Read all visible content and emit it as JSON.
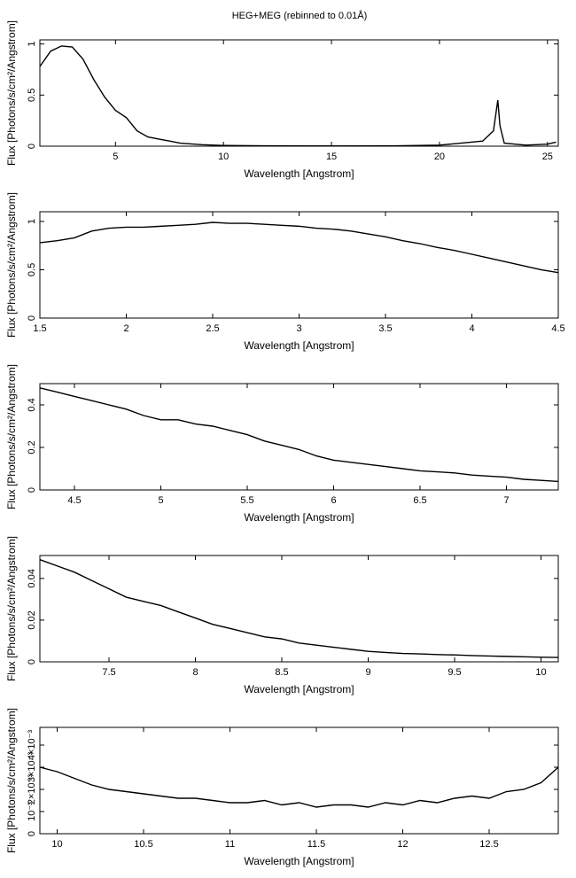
{
  "chart_data": [
    {
      "type": "line",
      "title": "HEG+MEG (rebinned to 0.01Å)",
      "x_label": "Wavelength [Angstrom]",
      "y_label": "Flux [Photons/s/cm²/Angstrom]",
      "color": "#000000",
      "x": [
        1.5,
        2,
        2.5,
        3,
        3.5,
        4,
        4.5,
        5,
        5.5,
        6,
        6.5,
        7,
        7.5,
        8,
        9,
        10,
        12,
        15,
        18,
        20,
        21,
        22,
        22.5,
        22.7,
        22.8,
        23,
        24,
        25,
        25.4
      ],
      "values": [
        0.78,
        0.93,
        0.98,
        0.97,
        0.85,
        0.65,
        0.48,
        0.35,
        0.28,
        0.15,
        0.09,
        0.07,
        0.05,
        0.03,
        0.015,
        0.007,
        0.004,
        0.003,
        0.004,
        0.01,
        0.03,
        0.05,
        0.15,
        0.45,
        0.2,
        0.03,
        0.01,
        0.02,
        0.04
      ],
      "xlim": [
        1.5,
        25.5
      ],
      "xticks": [
        5,
        10,
        15,
        20,
        25
      ],
      "ylim": [
        0,
        1.04
      ],
      "yticks": [
        0,
        0.5,
        1
      ]
    },
    {
      "type": "line",
      "x_label": "Wavelength [Angstrom]",
      "y_label": "Flux [Photons/s/cm²/Angstrom]",
      "color": "#000000",
      "x": [
        1.5,
        1.6,
        1.7,
        1.8,
        1.9,
        2.0,
        2.1,
        2.2,
        2.3,
        2.4,
        2.5,
        2.6,
        2.7,
        2.8,
        2.9,
        3.0,
        3.1,
        3.2,
        3.3,
        3.4,
        3.5,
        3.6,
        3.7,
        3.8,
        3.9,
        4.0,
        4.1,
        4.2,
        4.3,
        4.4,
        4.5
      ],
      "values": [
        0.78,
        0.8,
        0.83,
        0.9,
        0.93,
        0.94,
        0.94,
        0.95,
        0.96,
        0.97,
        0.99,
        0.98,
        0.98,
        0.97,
        0.96,
        0.95,
        0.93,
        0.92,
        0.9,
        0.87,
        0.84,
        0.8,
        0.77,
        0.73,
        0.7,
        0.66,
        0.62,
        0.58,
        0.54,
        0.5,
        0.47
      ],
      "xlim": [
        1.5,
        4.5
      ],
      "xticks": [
        1.5,
        2,
        2.5,
        3,
        3.5,
        4,
        4.5
      ],
      "ylim": [
        0,
        1.1
      ],
      "yticks": [
        0,
        0.5,
        1
      ]
    },
    {
      "type": "line",
      "x_label": "Wavelength [Angstrom]",
      "y_label": "Flux [Photons/s/cm²/Angstrom]",
      "color": "#000000",
      "x": [
        4.3,
        4.4,
        4.5,
        4.6,
        4.7,
        4.8,
        4.9,
        5.0,
        5.1,
        5.2,
        5.3,
        5.4,
        5.5,
        5.6,
        5.7,
        5.8,
        5.9,
        6.0,
        6.1,
        6.2,
        6.3,
        6.4,
        6.5,
        6.6,
        6.7,
        6.8,
        6.9,
        7.0,
        7.1,
        7.2,
        7.3
      ],
      "values": [
        0.48,
        0.46,
        0.44,
        0.42,
        0.4,
        0.38,
        0.35,
        0.33,
        0.33,
        0.31,
        0.3,
        0.28,
        0.26,
        0.23,
        0.21,
        0.19,
        0.16,
        0.14,
        0.13,
        0.12,
        0.11,
        0.1,
        0.09,
        0.085,
        0.08,
        0.07,
        0.065,
        0.06,
        0.05,
        0.045,
        0.04
      ],
      "xlim": [
        4.3,
        7.3
      ],
      "xticks": [
        4.5,
        5,
        5.5,
        6,
        6.5,
        7
      ],
      "ylim": [
        0,
        0.5
      ],
      "yticks": [
        0,
        0.2,
        0.4
      ]
    },
    {
      "type": "line",
      "x_label": "Wavelength [Angstrom]",
      "y_label": "Flux [Photons/s/cm²/Angstrom]",
      "color": "#000000",
      "x": [
        7.1,
        7.2,
        7.3,
        7.4,
        7.5,
        7.6,
        7.7,
        7.8,
        7.9,
        8.0,
        8.1,
        8.2,
        8.3,
        8.4,
        8.5,
        8.6,
        8.7,
        8.8,
        8.9,
        9.0,
        9.1,
        9.2,
        9.3,
        9.4,
        9.5,
        9.6,
        9.7,
        9.8,
        9.9,
        10.0,
        10.1
      ],
      "values": [
        0.049,
        0.046,
        0.043,
        0.039,
        0.035,
        0.031,
        0.029,
        0.027,
        0.024,
        0.021,
        0.018,
        0.016,
        0.014,
        0.012,
        0.011,
        0.009,
        0.008,
        0.007,
        0.006,
        0.005,
        0.0045,
        0.004,
        0.0038,
        0.0035,
        0.0033,
        0.003,
        0.0028,
        0.0026,
        0.0024,
        0.0022,
        0.0021
      ],
      "xlim": [
        7.1,
        10.1
      ],
      "xticks": [
        7.5,
        8,
        8.5,
        9,
        9.5,
        10
      ],
      "ylim": [
        0,
        0.051
      ],
      "yticks": [
        0,
        0.02,
        0.04
      ]
    },
    {
      "type": "line",
      "x_label": "Wavelength [Angstrom]",
      "y_label": "Flux [Photons/s/cm²/Angstrom]",
      "color": "#000000",
      "x": [
        9.9,
        10.0,
        10.1,
        10.2,
        10.3,
        10.4,
        10.5,
        10.6,
        10.7,
        10.8,
        10.9,
        11.0,
        11.1,
        11.2,
        11.3,
        11.4,
        11.5,
        11.6,
        11.7,
        11.8,
        11.9,
        12.0,
        12.1,
        12.2,
        12.3,
        12.4,
        12.5,
        12.6,
        12.7,
        12.8,
        12.9
      ],
      "values": [
        0.003,
        0.0028,
        0.0025,
        0.0022,
        0.002,
        0.0019,
        0.0018,
        0.0017,
        0.0016,
        0.0016,
        0.0015,
        0.0014,
        0.0014,
        0.0015,
        0.0013,
        0.0014,
        0.0012,
        0.0013,
        0.0013,
        0.0012,
        0.0014,
        0.0013,
        0.0015,
        0.0014,
        0.0016,
        0.0017,
        0.0016,
        0.0019,
        0.002,
        0.0023,
        0.003
      ],
      "xlim": [
        9.9,
        12.9
      ],
      "xticks": [
        10,
        10.5,
        11,
        11.5,
        12,
        12.5
      ],
      "ylim": [
        0,
        0.0048
      ],
      "yticks": [
        0,
        {
          "value": 0.001,
          "label": "10⁻³"
        },
        {
          "value": 0.002,
          "label": "2×10⁻³"
        },
        {
          "value": 0.003,
          "label": "3×10⁻³"
        },
        {
          "value": 0.004,
          "label": "4×10⁻³"
        }
      ]
    }
  ]
}
